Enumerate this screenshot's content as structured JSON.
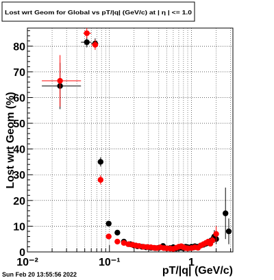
{
  "chart_data": {
    "type": "scatter",
    "title": "Lost wrt Geom for Global vs pT/|q| (GeV/c) at | η | <= 1.0",
    "xlabel": "pT/|q| (GeV/c)",
    "ylabel": "Lost wrt Geom (%)",
    "x_scale": "log",
    "xlim": [
      0.01,
      3.2
    ],
    "ylim": [
      0,
      87
    ],
    "grid": true,
    "x_tick_labels": [
      "10⁻²",
      "10⁻¹",
      "1"
    ],
    "y_tick_labels": [
      "0",
      "10",
      "20",
      "30",
      "40",
      "50",
      "60",
      "70",
      "80"
    ],
    "timestamp": "Sun Feb 20 13:55:56 2022",
    "colors": {
      "black": "#000000",
      "red": "#ff0000"
    },
    "series": [
      {
        "color": "black",
        "points": [
          {
            "x": 0.025,
            "y": 64.5,
            "xerr": [
              0.015,
              0.045
            ],
            "yerr": 9.0
          },
          {
            "x": 0.053,
            "y": 81.5,
            "xerr": [
              0.045,
              0.06
            ],
            "yerr": 2.0
          },
          {
            "x": 0.067,
            "y": 81.0,
            "xerr": [
              0.06,
              0.073
            ],
            "yerr": 2.0
          },
          {
            "x": 0.078,
            "y": 35.0,
            "xerr": [
              0.074,
              0.082
            ],
            "yerr": 1.8
          },
          {
            "x": 0.098,
            "y": 11.0,
            "xerr": [
              0.092,
              0.105
            ],
            "yerr": 1.0
          },
          {
            "x": 0.125,
            "y": 7.5,
            "yerr": 0.9
          },
          {
            "x": 0.15,
            "y": 4.0,
            "yerr": 0.7
          },
          {
            "x": 0.18,
            "y": 3.0
          },
          {
            "x": 0.2,
            "y": 2.5
          },
          {
            "x": 0.22,
            "y": 2.2
          },
          {
            "x": 0.25,
            "y": 2.0
          },
          {
            "x": 0.28,
            "y": 1.8
          },
          {
            "x": 0.32,
            "y": 1.6
          },
          {
            "x": 0.36,
            "y": 1.5
          },
          {
            "x": 0.4,
            "y": 1.6
          },
          {
            "x": 0.45,
            "y": 2.3
          },
          {
            "x": 0.5,
            "y": 1.4
          },
          {
            "x": 0.55,
            "y": 1.5
          },
          {
            "x": 0.6,
            "y": 1.8
          },
          {
            "x": 0.65,
            "y": 1.3
          },
          {
            "x": 0.7,
            "y": 1.5
          },
          {
            "x": 0.75,
            "y": 1.6
          },
          {
            "x": 0.8,
            "y": 1.4
          },
          {
            "x": 0.85,
            "y": 2.0
          },
          {
            "x": 0.9,
            "y": 1.8
          },
          {
            "x": 0.95,
            "y": 1.5
          },
          {
            "x": 1.0,
            "y": 2.0
          },
          {
            "x": 1.05,
            "y": 1.7
          },
          {
            "x": 1.1,
            "y": 2.2
          },
          {
            "x": 1.2,
            "y": 2.0
          },
          {
            "x": 1.3,
            "y": 2.5
          },
          {
            "x": 1.4,
            "y": 2.8
          },
          {
            "x": 1.5,
            "y": 3.2
          },
          {
            "x": 1.6,
            "y": 3.5
          },
          {
            "x": 1.75,
            "y": 4.5,
            "yerr": 1.5
          },
          {
            "x": 1.9,
            "y": 6.0,
            "yerr": 2.5
          },
          {
            "x": 2.0,
            "y": 5.0,
            "yerr": 2.0
          },
          {
            "x": 2.6,
            "y": 15.0,
            "yerr": 10.0
          },
          {
            "x": 2.85,
            "y": 8.0,
            "yerr": 5.0
          }
        ]
      },
      {
        "color": "red",
        "points": [
          {
            "x": 0.025,
            "y": 66.5,
            "xerr": [
              0.015,
              0.045
            ],
            "yerr": 10.0
          },
          {
            "x": 0.053,
            "y": 85.0,
            "xerr": [
              0.048,
              0.06
            ],
            "yerr": 2.0
          },
          {
            "x": 0.067,
            "y": 80.5,
            "xerr": [
              0.06,
              0.073
            ],
            "yerr": 2.0
          },
          {
            "x": 0.078,
            "y": 28.0,
            "xerr": [
              0.074,
              0.082
            ],
            "yerr": 1.8
          },
          {
            "x": 0.098,
            "y": 6.0,
            "xerr": [
              0.092,
              0.105
            ],
            "yerr": 1.0
          },
          {
            "x": 0.125,
            "y": 4.0,
            "yerr": 0.8
          },
          {
            "x": 0.15,
            "y": 3.5
          },
          {
            "x": 0.17,
            "y": 3.0
          },
          {
            "x": 0.19,
            "y": 2.8
          },
          {
            "x": 0.21,
            "y": 2.5
          },
          {
            "x": 0.23,
            "y": 2.3
          },
          {
            "x": 0.26,
            "y": 2.0
          },
          {
            "x": 0.29,
            "y": 1.9
          },
          {
            "x": 0.32,
            "y": 1.8
          },
          {
            "x": 0.35,
            "y": 1.6
          },
          {
            "x": 0.38,
            "y": 1.5
          },
          {
            "x": 0.42,
            "y": 1.8
          },
          {
            "x": 0.46,
            "y": 1.5
          },
          {
            "x": 0.5,
            "y": 1.4
          },
          {
            "x": 0.55,
            "y": 1.3
          },
          {
            "x": 0.6,
            "y": 1.2
          },
          {
            "x": 0.65,
            "y": 1.6
          },
          {
            "x": 0.7,
            "y": 2.0
          },
          {
            "x": 0.75,
            "y": 2.2
          },
          {
            "x": 0.8,
            "y": 1.8
          },
          {
            "x": 0.85,
            "y": 1.5
          },
          {
            "x": 0.9,
            "y": 1.4
          },
          {
            "x": 1.0,
            "y": 1.5
          },
          {
            "x": 1.1,
            "y": 1.8
          },
          {
            "x": 1.2,
            "y": 1.6
          },
          {
            "x": 1.3,
            "y": 2.5
          },
          {
            "x": 1.4,
            "y": 3.0
          },
          {
            "x": 1.5,
            "y": 3.5
          },
          {
            "x": 1.6,
            "y": 4.0
          },
          {
            "x": 1.7,
            "y": 3.2
          },
          {
            "x": 1.8,
            "y": 4.5,
            "yerr": 1.5
          },
          {
            "x": 2.0,
            "y": 7.0,
            "yerr": 3.0
          }
        ]
      }
    ]
  }
}
